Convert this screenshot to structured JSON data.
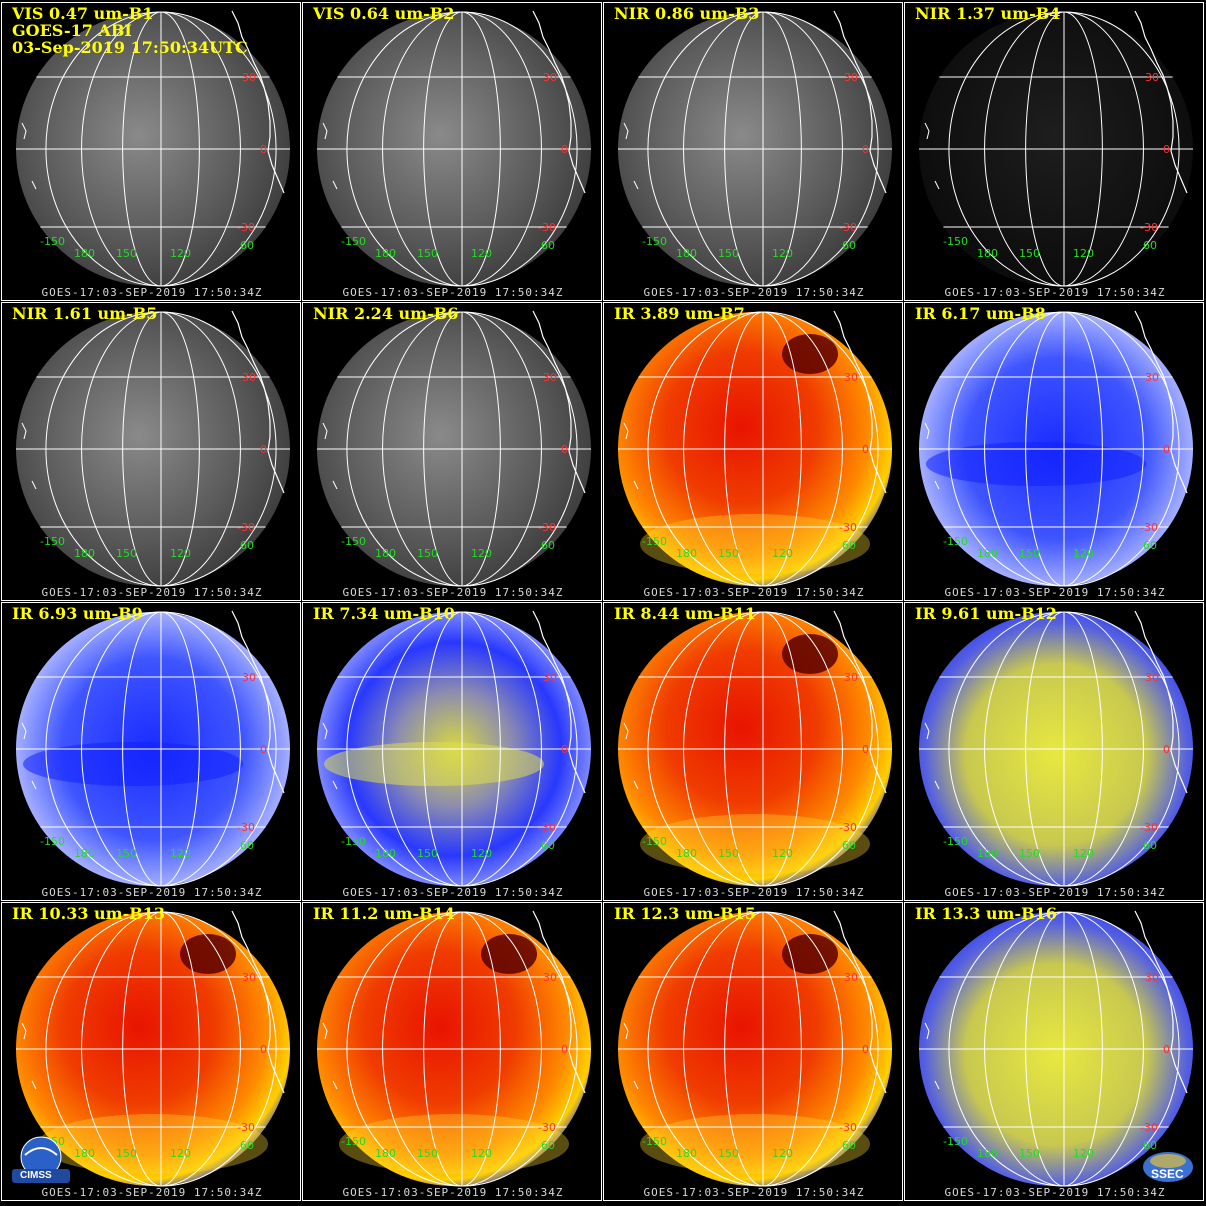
{
  "header": {
    "satellite": "GOES-17 ABI",
    "datetime": "03-Sep-2019 17:50:34UTC"
  },
  "footer_text": "GOES-17:03-SEP-2019 17:50:34Z",
  "lat_labels": [
    "30",
    "0",
    "-30"
  ],
  "lon_labels": [
    "-150",
    "180",
    "150",
    "120",
    "60"
  ],
  "logos": {
    "left": "CIMSS",
    "right": "SSEC"
  },
  "panels": [
    {
      "title": "VIS 0.47 um-B1",
      "style": "vis"
    },
    {
      "title": "VIS 0.64 um-B2",
      "style": "vis"
    },
    {
      "title": "NIR 0.86 um-B3",
      "style": "vis"
    },
    {
      "title": "NIR 1.37 um-B4",
      "style": "dark"
    },
    {
      "title": "NIR 1.61 um-B5",
      "style": "vis"
    },
    {
      "title": "NIR 2.24 um-B6",
      "style": "vis"
    },
    {
      "title": "IR 3.89 um-B7",
      "style": "hot"
    },
    {
      "title": "IR 6.17 um-B8",
      "style": "wv"
    },
    {
      "title": "IR 6.93 um-B9",
      "style": "wv"
    },
    {
      "title": "IR 7.34 um-B10",
      "style": "wvy"
    },
    {
      "title": "IR 8.44 um-B11",
      "style": "hot"
    },
    {
      "title": "IR 9.61 um-B12",
      "style": "yel"
    },
    {
      "title": "IR 10.33 um-B13",
      "style": "hot"
    },
    {
      "title": "IR 11.2 um-B14",
      "style": "hot"
    },
    {
      "title": "IR 12.3 um-B15",
      "style": "hot"
    },
    {
      "title": "IR 13.3 um-B16",
      "style": "yel"
    }
  ],
  "colors": {
    "title": "#ffff00",
    "lat_label": "#ff3030",
    "lon_label": "#22dd22",
    "grid": "#ffffff",
    "footer": "#d8d8d8"
  }
}
